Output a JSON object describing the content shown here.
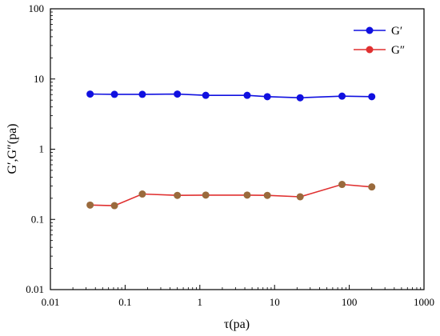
{
  "chart_data": {
    "type": "line",
    "title": "",
    "xlabel": "τ(pa)",
    "ylabel": "G′,G″(pa)",
    "xscale": "log",
    "yscale": "log",
    "xlim": [
      0.01,
      1000
    ],
    "ylim": [
      0.01,
      100
    ],
    "x_ticks": [
      "0.01",
      "0.1",
      "1",
      "10",
      "100",
      "1000"
    ],
    "y_ticks": [
      "0.01",
      "0.1",
      "1",
      "10",
      "100"
    ],
    "grid": false,
    "legend_position": "top-right",
    "series": [
      {
        "name": "G′",
        "color": "#1010e0",
        "x": [
          0.034,
          0.072,
          0.17,
          0.5,
          1.2,
          4.3,
          8,
          22,
          80,
          200
        ],
        "y": [
          6.1,
          6.05,
          6.05,
          6.1,
          5.85,
          5.85,
          5.6,
          5.4,
          5.7,
          5.6
        ]
      },
      {
        "name": "G″",
        "color": "#e03030",
        "marker_color": "#9a6a3c",
        "x": [
          0.034,
          0.072,
          0.17,
          0.5,
          1.2,
          4.3,
          8,
          22,
          80,
          200
        ],
        "y": [
          0.16,
          0.157,
          0.23,
          0.22,
          0.222,
          0.222,
          0.22,
          0.21,
          0.315,
          0.29
        ]
      }
    ]
  }
}
